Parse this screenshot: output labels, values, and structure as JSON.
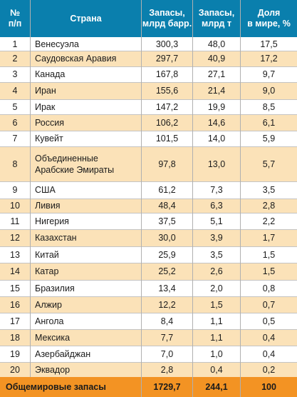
{
  "headers": {
    "num": "№\nп/п",
    "country": "Страна",
    "barrels": "Запасы,\nмлрд барр.",
    "tonnes": "Запасы,\nмлрд т",
    "share": "Доля\nв мире, %"
  },
  "rows": [
    {
      "n": "1",
      "country": "Венесуэла",
      "barrels": "300,3",
      "tonnes": "48,0",
      "share": "17,5"
    },
    {
      "n": "2",
      "country": "Саудовская Аравия",
      "barrels": "297,7",
      "tonnes": "40,9",
      "share": "17,2"
    },
    {
      "n": "3",
      "country": "Канада",
      "barrels": "167,8",
      "tonnes": "27,1",
      "share": "9,7"
    },
    {
      "n": "4",
      "country": "Иран",
      "barrels": "155,6",
      "tonnes": "21,4",
      "share": "9,0"
    },
    {
      "n": "5",
      "country": "Ирак",
      "barrels": "147,2",
      "tonnes": "19,9",
      "share": "8,5"
    },
    {
      "n": "6",
      "country": "Россия",
      "barrels": "106,2",
      "tonnes": "14,6",
      "share": "6,1"
    },
    {
      "n": "7",
      "country": "Кувейт",
      "barrels": "101,5",
      "tonnes": "14,0",
      "share": "5,9"
    },
    {
      "n": "8",
      "country": "Объединенные\nАрабские Эмираты",
      "barrels": "97,8",
      "tonnes": "13,0",
      "share": "5,7"
    },
    {
      "n": "9",
      "country": "США",
      "barrels": "61,2",
      "tonnes": "7,3",
      "share": "3,5"
    },
    {
      "n": "10",
      "country": "Ливия",
      "barrels": "48,4",
      "tonnes": "6,3",
      "share": "2,8"
    },
    {
      "n": "11",
      "country": "Нигерия",
      "barrels": "37,5",
      "tonnes": "5,1",
      "share": "2,2"
    },
    {
      "n": "12",
      "country": "Казахстан",
      "barrels": "30,0",
      "tonnes": "3,9",
      "share": "1,7"
    },
    {
      "n": "13",
      "country": "Китай",
      "barrels": "25,9",
      "tonnes": "3,5",
      "share": "1,5"
    },
    {
      "n": "14",
      "country": "Катар",
      "barrels": "25,2",
      "tonnes": "2,6",
      "share": "1,5"
    },
    {
      "n": "15",
      "country": "Бразилия",
      "barrels": "13,4",
      "tonnes": "2,0",
      "share": "0,8"
    },
    {
      "n": "16",
      "country": "Алжир",
      "barrels": "12,2",
      "tonnes": "1,5",
      "share": "0,7"
    },
    {
      "n": "17",
      "country": "Ангола",
      "barrels": "8,4",
      "tonnes": "1,1",
      "share": "0,5"
    },
    {
      "n": "18",
      "country": "Мексика",
      "barrels": "7,7",
      "tonnes": "1,1",
      "share": "0,4"
    },
    {
      "n": "19",
      "country": "Азербайджан",
      "barrels": "7,0",
      "tonnes": "1,0",
      "share": "0,4"
    },
    {
      "n": "20",
      "country": "Эквадор",
      "barrels": "2,8",
      "tonnes": "0,4",
      "share": "0,2"
    }
  ],
  "total": {
    "label": "Общемировые запасы",
    "barrels": "1729,7",
    "tonnes": "244,1",
    "share": "100"
  },
  "colors": {
    "header": "#0a7fad",
    "row_alt": "#fbe2b8",
    "total": "#f39323"
  }
}
